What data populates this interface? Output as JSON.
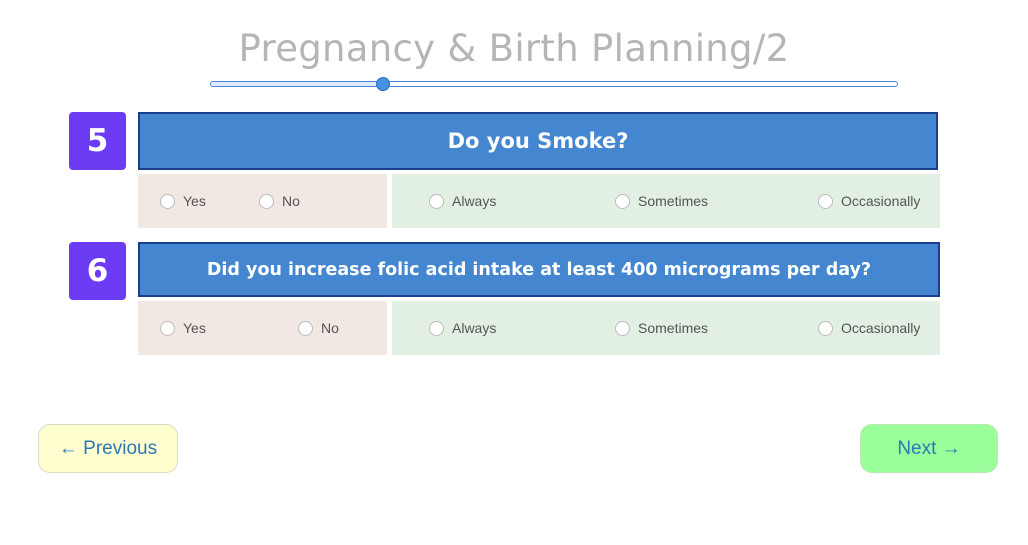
{
  "page": {
    "title": "Pregnancy & Birth Planning/2"
  },
  "progress": {
    "value": 0.25
  },
  "questions": [
    {
      "number": "5",
      "text": "Do you Smoke?",
      "yes_no": [
        "Yes",
        "No"
      ],
      "frequency": [
        "Always",
        "Sometimes",
        "Occasionally"
      ]
    },
    {
      "number": "6",
      "text": "Did you increase folic acid intake at least 400 micrograms per day?",
      "yes_no": [
        "Yes",
        "No"
      ],
      "frequency": [
        "Always",
        "Sometimes",
        "Occasionally"
      ]
    }
  ],
  "nav": {
    "previous_label": "← Previous",
    "next_label": "Next →"
  },
  "colors": {
    "number_badge": "#6c3cf5",
    "question_header": "#4486cf",
    "yes_no_panel": "#f2e8e3",
    "frequency_panel": "#e1f0e3",
    "previous_button": "#ffffd0",
    "next_button": "#9afe9a"
  }
}
